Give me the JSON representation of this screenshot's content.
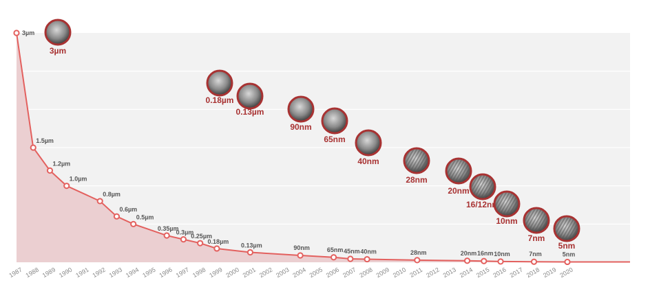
{
  "chart_data": {
    "type": "area",
    "title": "",
    "xlabel": "",
    "ylabel": "",
    "xlim": [
      1987,
      2020
    ],
    "ylim_um": [
      0,
      3
    ],
    "grid": true,
    "years": [
      "1987",
      "1988",
      "1989",
      "1990",
      "1991",
      "1992",
      "1993",
      "1994",
      "1995",
      "1996",
      "1997",
      "1998",
      "1999",
      "2000",
      "2001",
      "2002",
      "2003",
      "2004",
      "2005",
      "2006",
      "2007",
      "2008",
      "2009",
      "2010",
      "2011",
      "2012",
      "2013",
      "2014",
      "2015",
      "2016",
      "2017",
      "2018",
      "2019",
      "2020"
    ],
    "points": [
      {
        "year": 1987,
        "value_um": 3,
        "label": "3µm"
      },
      {
        "year": 1988,
        "value_um": 1.5,
        "label": "1.5µm"
      },
      {
        "year": 1989,
        "value_um": 1.2,
        "label": "1.2µm"
      },
      {
        "year": 1990,
        "value_um": 1.0,
        "label": "1.0µm"
      },
      {
        "year": 1992,
        "value_um": 0.8,
        "label": "0.8µm"
      },
      {
        "year": 1993,
        "value_um": 0.6,
        "label": "0.6µm"
      },
      {
        "year": 1994,
        "value_um": 0.5,
        "label": "0.5µm"
      },
      {
        "year": 1996,
        "value_um": 0.35,
        "label": "0.35µm"
      },
      {
        "year": 1997,
        "value_um": 0.3,
        "label": "0.3µm"
      },
      {
        "year": 1998,
        "value_um": 0.25,
        "label": "0.25µm"
      },
      {
        "year": 1999,
        "value_um": 0.18,
        "label": "0.18µm"
      },
      {
        "year": 2001,
        "value_um": 0.13,
        "label": "0.13µm"
      },
      {
        "year": 2004,
        "value_um": 0.09,
        "label": "90nm"
      },
      {
        "year": 2006,
        "value_um": 0.065,
        "label": "65nm"
      },
      {
        "year": 2007,
        "value_um": 0.045,
        "label": "45nm"
      },
      {
        "year": 2008,
        "value_um": 0.04,
        "label": "40nm"
      },
      {
        "year": 2011,
        "value_um": 0.028,
        "label": "28nm"
      },
      {
        "year": 2014,
        "value_um": 0.02,
        "label": "20nm"
      },
      {
        "year": 2015,
        "value_um": 0.016,
        "label": "16nm"
      },
      {
        "year": 2016,
        "value_um": 0.01,
        "label": "10nm"
      },
      {
        "year": 2018,
        "value_um": 0.007,
        "label": "7nm"
      },
      {
        "year": 2020,
        "value_um": 0.005,
        "label": "5nm"
      }
    ],
    "bubbles": [
      "3µm",
      "0.18µm",
      "0.13µm",
      "90nm",
      "65nm",
      "40nm",
      "28nm",
      "20nm",
      "16/12nm",
      "10nm",
      "7nm",
      "5nm"
    ],
    "colors": {
      "line": "#e3605e",
      "fill": "#ebcfd1",
      "plot_bg": "#f2f2f2",
      "bubble_border": "#a83232",
      "bubble_label": "#a83232"
    }
  }
}
